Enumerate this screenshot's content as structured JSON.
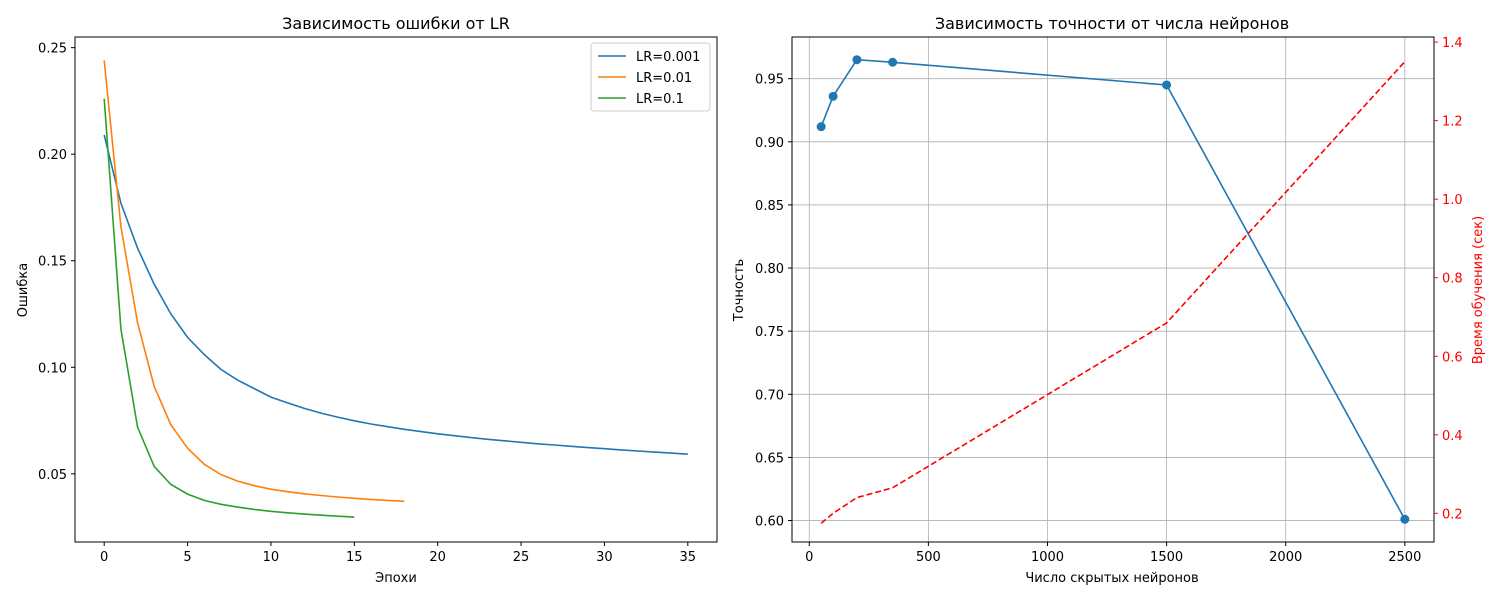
{
  "chart_data": [
    {
      "type": "line",
      "title": "Зависимость ошибки от LR",
      "xlabel": "Эпохи",
      "ylabel": "Ошибка",
      "xlim": [
        -1.75,
        36.75
      ],
      "ylim": [
        0.018,
        0.255
      ],
      "xticks": [
        0,
        5,
        10,
        15,
        20,
        25,
        30,
        35
      ],
      "yticks": [
        0.05,
        0.1,
        0.15,
        0.2,
        0.25
      ],
      "ytick_labels": [
        "0.05",
        "0.10",
        "0.15",
        "0.20",
        "0.25"
      ],
      "grid": false,
      "legend_position": "top-right",
      "series": [
        {
          "name": "LR=0.001",
          "color": "#1f77b4",
          "x": [
            0,
            1,
            2,
            3,
            4,
            5,
            6,
            7,
            8,
            9,
            10,
            11,
            12,
            13,
            14,
            15,
            16,
            17,
            18,
            19,
            20,
            21,
            22,
            23,
            24,
            25,
            26,
            27,
            28,
            29,
            30,
            31,
            32,
            33,
            34,
            35
          ],
          "y": [
            0.209,
            0.177,
            0.156,
            0.139,
            0.125,
            0.114,
            0.106,
            0.099,
            0.094,
            0.09,
            0.086,
            0.0833,
            0.0807,
            0.0785,
            0.0766,
            0.0749,
            0.0734,
            0.0721,
            0.0709,
            0.0698,
            0.0688,
            0.0679,
            0.067,
            0.0662,
            0.0655,
            0.0648,
            0.0641,
            0.0635,
            0.0629,
            0.0623,
            0.0618,
            0.0612,
            0.0607,
            0.0602,
            0.0597,
            0.0592
          ]
        },
        {
          "name": "LR=0.01",
          "color": "#ff7f0e",
          "x": [
            0,
            1,
            2,
            3,
            4,
            5,
            6,
            7,
            8,
            9,
            10,
            11,
            12,
            13,
            14,
            15,
            16,
            17,
            18
          ],
          "y": [
            0.244,
            0.166,
            0.121,
            0.091,
            0.073,
            0.062,
            0.0545,
            0.0497,
            0.0466,
            0.0444,
            0.0428,
            0.0416,
            0.0406,
            0.0398,
            0.0391,
            0.0385,
            0.038,
            0.0375,
            0.0371
          ]
        },
        {
          "name": "LR=0.1",
          "color": "#2ca02c",
          "x": [
            0,
            1,
            2,
            3,
            4,
            5,
            6,
            7,
            8,
            9,
            10,
            11,
            12,
            13,
            14,
            15
          ],
          "y": [
            0.226,
            0.118,
            0.072,
            0.0535,
            0.045,
            0.0405,
            0.0375,
            0.0357,
            0.0344,
            0.0333,
            0.0324,
            0.0317,
            0.0311,
            0.0306,
            0.0301,
            0.0297
          ]
        }
      ]
    },
    {
      "type": "line",
      "title": "Зависимость точности от числа нейронов",
      "xlabel": "Число скрытых нейронов",
      "ylabel": "Точность",
      "ylabel_right": "Время обучения (сек)",
      "xlim": [
        -72.5,
        2622.5
      ],
      "ylim": [
        0.583,
        0.983
      ],
      "ylim_right": [
        0.127,
        1.413
      ],
      "xticks": [
        0,
        500,
        1000,
        1500,
        2000,
        2500
      ],
      "yticks": [
        0.6,
        0.65,
        0.7,
        0.75,
        0.8,
        0.85,
        0.9,
        0.95
      ],
      "ytick_labels": [
        "0.60",
        "0.65",
        "0.70",
        "0.75",
        "0.80",
        "0.85",
        "0.90",
        "0.95"
      ],
      "yticks_right": [
        0.2,
        0.4,
        0.6,
        0.8,
        1.0,
        1.2,
        1.4
      ],
      "ytick_labels_right": [
        "0.2",
        "0.4",
        "0.6",
        "0.8",
        "1.0",
        "1.2",
        "1.4"
      ],
      "grid": true,
      "series": [
        {
          "color": "#1f77b4",
          "axis": "left",
          "style": "solid",
          "markers": true,
          "x": [
            50,
            100,
            200,
            350,
            1500,
            2500
          ],
          "y": [
            0.912,
            0.936,
            0.965,
            0.963,
            0.945,
            0.601
          ]
        },
        {
          "color": "#ff0000",
          "axis": "right",
          "style": "dashed",
          "markers": false,
          "x": [
            50,
            100,
            200,
            350,
            1500,
            2500
          ],
          "y": [
            0.175,
            0.2,
            0.24,
            0.265,
            0.685,
            1.35
          ]
        }
      ]
    }
  ]
}
